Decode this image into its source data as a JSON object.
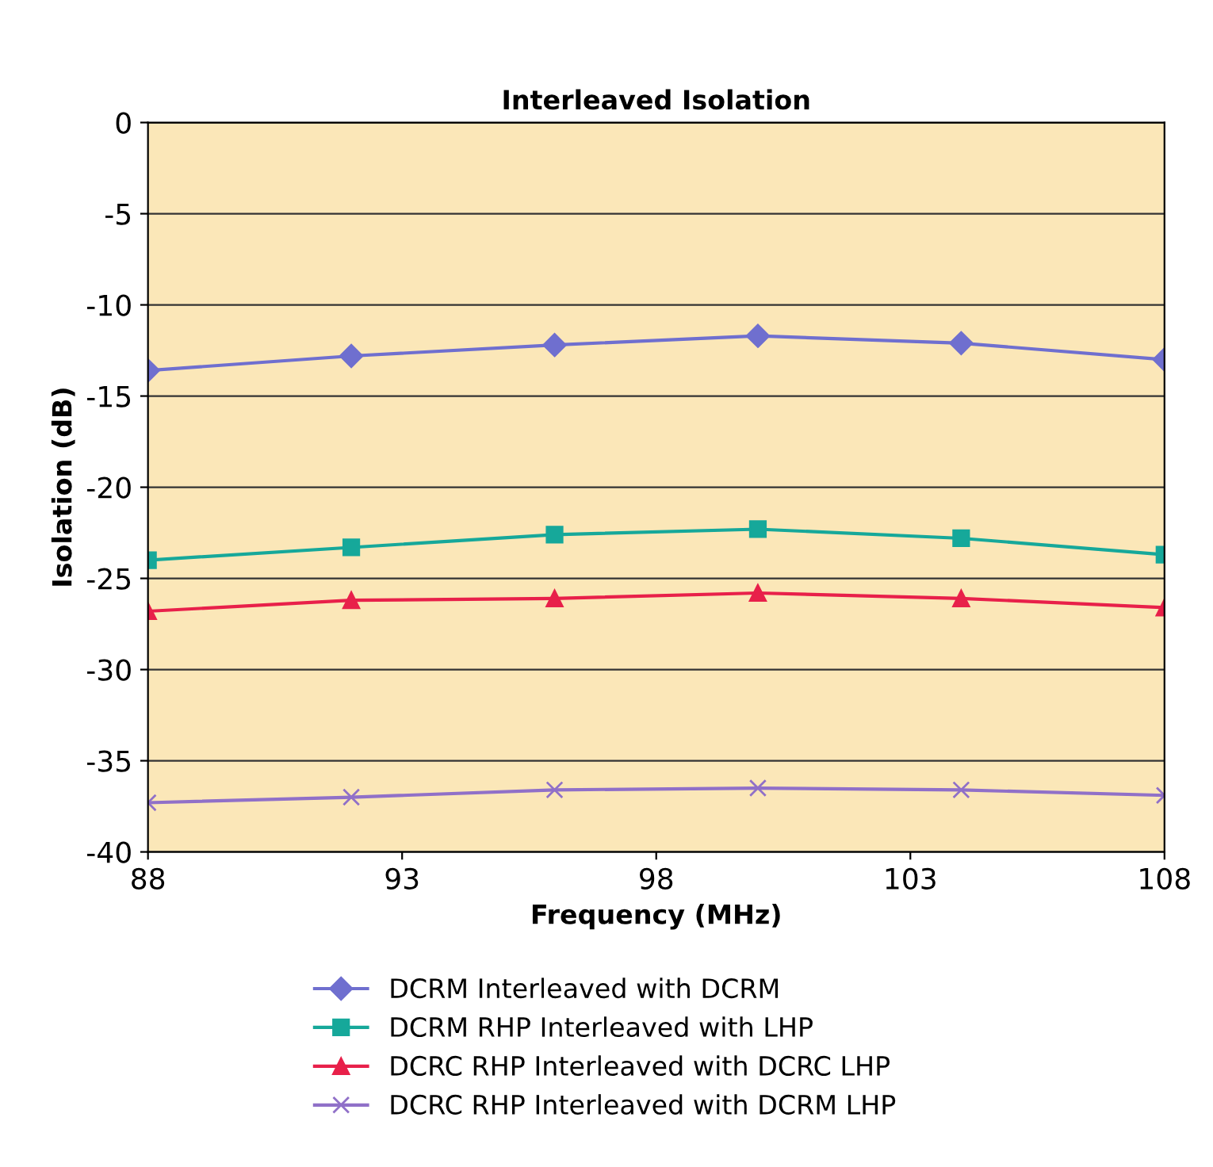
{
  "chart_data": {
    "type": "line",
    "title": "Interleaved Isolation",
    "xlabel": "Frequency (MHz)",
    "ylabel": "Isolation (dB)",
    "x": [
      88,
      92,
      96,
      100,
      104,
      108
    ],
    "series": [
      {
        "name": "DCRM Interleaved with DCRM",
        "color": "#6f6fcf",
        "marker": "diamond",
        "values": [
          -13.6,
          -12.8,
          -12.2,
          -11.7,
          -12.1,
          -13.0
        ]
      },
      {
        "name": "DCRM RHP Interleaved with LHP",
        "color": "#16a89a",
        "marker": "square",
        "values": [
          -24.0,
          -23.3,
          -22.6,
          -22.3,
          -22.8,
          -23.7
        ]
      },
      {
        "name": "DCRC RHP Interleaved with DCRC LHP",
        "color": "#e8204a",
        "marker": "triangle",
        "values": [
          -26.8,
          -26.2,
          -26.1,
          -25.8,
          -26.1,
          -26.6
        ]
      },
      {
        "name": "DCRC RHP Interleaved with DCRM LHP",
        "color": "#9070c8",
        "marker": "cross",
        "values": [
          -37.3,
          -37.0,
          -36.6,
          -36.5,
          -36.6,
          -36.9
        ]
      }
    ],
    "xlim": [
      88,
      108
    ],
    "xticks": [
      88,
      93,
      98,
      103,
      108
    ],
    "ylim": [
      -40,
      0
    ],
    "yticks": [
      -40,
      -35,
      -30,
      -25,
      -20,
      -15,
      -10,
      -5,
      0
    ],
    "grid": "y",
    "legend": "bottom",
    "line_style": "solid"
  }
}
